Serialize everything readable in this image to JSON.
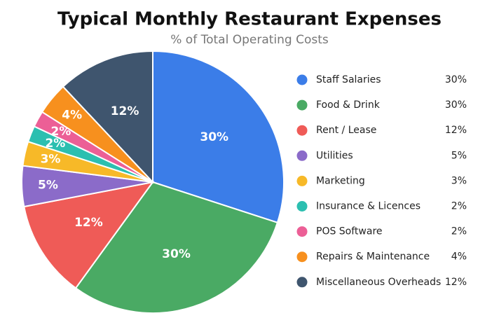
{
  "chart_data": {
    "type": "pie",
    "title": "Typical Monthly Restaurant Expenses",
    "subtitle": "% of Total Operating Costs",
    "series": [
      {
        "name": "Staff Salaries",
        "color": "#3b7de8",
        "values": [
          30
        ],
        "value_labels": [
          "30%"
        ]
      },
      {
        "name": "Food & Drink",
        "color": "#4aaa64",
        "values": [
          30
        ],
        "value_labels": [
          "30%"
        ]
      },
      {
        "name": "Rent / Lease",
        "color": "#ef5b57",
        "values": [
          12
        ],
        "value_labels": [
          "12%"
        ]
      },
      {
        "name": "Utilities",
        "color": "#8b6bc9",
        "values": [
          5
        ],
        "value_labels": [
          "5%"
        ]
      },
      {
        "name": "Marketing",
        "color": "#f7b928",
        "values": [
          3
        ],
        "value_labels": [
          "3%"
        ]
      },
      {
        "name": "Insurance & Licences",
        "color": "#2cbfb0",
        "values": [
          2
        ],
        "value_labels": [
          "2%"
        ]
      },
      {
        "name": "POS Software",
        "color": "#ec5f96",
        "values": [
          2
        ],
        "value_labels": [
          "2%"
        ]
      },
      {
        "name": "Repairs & Maintenance",
        "color": "#f7901e",
        "values": [
          4
        ],
        "value_labels": [
          "4%"
        ]
      },
      {
        "name": "Miscellaneous Overheads",
        "color": "#3f556e",
        "values": [
          12
        ],
        "value_labels": [
          "12%"
        ]
      }
    ],
    "legend": "right"
  }
}
